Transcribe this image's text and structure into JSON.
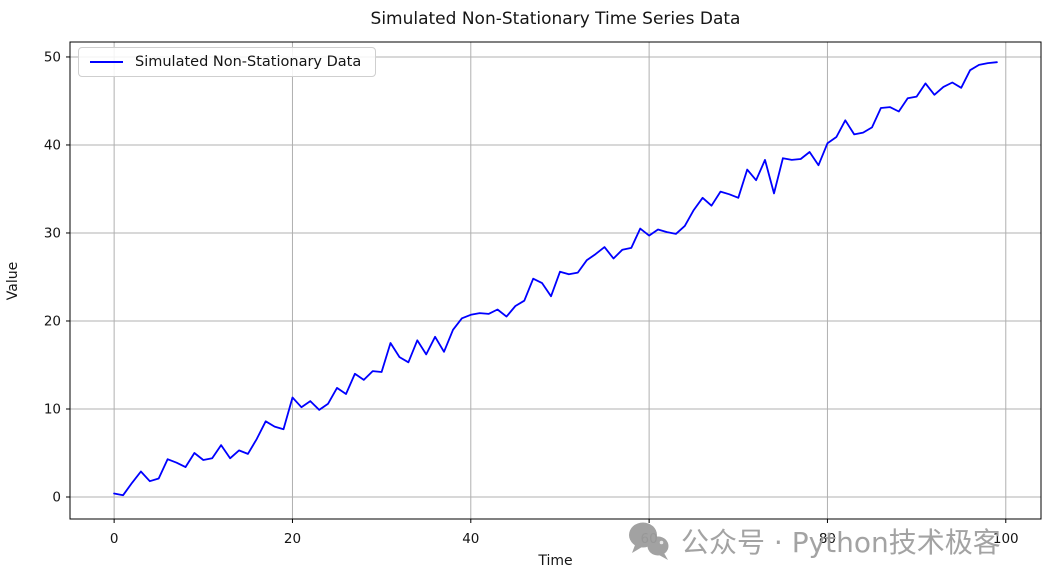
{
  "chart_data": {
    "type": "line",
    "title": "Simulated Non-Stationary Time Series Data",
    "xlabel": "Time",
    "ylabel": "Value",
    "xlim": [
      -4.95,
      103.95
    ],
    "ylim": [
      -2.5,
      51.7
    ],
    "xticks": [
      0,
      20,
      40,
      60,
      80,
      100
    ],
    "yticks": [
      0,
      10,
      20,
      30,
      40,
      50
    ],
    "grid": true,
    "legend": {
      "position": "upper left",
      "entries": [
        {
          "label": "Simulated Non-Stationary Data",
          "color": "#0000ff"
        }
      ]
    },
    "series": [
      {
        "name": "Simulated Non-Stationary Data",
        "color": "#0000ff",
        "x_start": 0,
        "x_step": 1,
        "values": [
          0.4,
          0.2,
          1.6,
          2.9,
          1.8,
          2.1,
          4.3,
          3.9,
          3.4,
          5.0,
          4.2,
          4.4,
          5.9,
          4.4,
          5.3,
          4.9,
          6.6,
          8.6,
          8.0,
          7.7,
          11.3,
          10.2,
          10.9,
          9.9,
          10.6,
          12.4,
          11.7,
          14.0,
          13.3,
          14.3,
          14.2,
          17.5,
          15.9,
          15.3,
          17.8,
          16.2,
          18.2,
          16.5,
          19.0,
          20.3,
          20.7,
          20.9,
          20.8,
          21.3,
          20.5,
          21.7,
          22.3,
          24.8,
          24.3,
          22.8,
          25.6,
          25.3,
          25.5,
          26.9,
          27.6,
          28.4,
          27.1,
          28.1,
          28.3,
          30.5,
          29.7,
          30.4,
          30.1,
          29.9,
          30.8,
          32.6,
          34.0,
          33.1,
          34.7,
          34.4,
          34.0,
          37.2,
          36.0,
          38.3,
          34.5,
          38.5,
          38.3,
          38.4,
          39.2,
          37.7,
          40.2,
          40.9,
          42.8,
          41.2,
          41.4,
          42.0,
          44.2,
          44.3,
          43.8,
          45.3,
          45.5,
          47.0,
          45.7,
          46.6,
          47.1,
          46.5,
          48.5,
          49.1,
          49.3,
          49.4
        ]
      }
    ]
  },
  "watermark": {
    "text": "公众号 · Python技术极客",
    "icon": "wechat-icon"
  },
  "colors": {
    "line": "#0000ff",
    "grid": "#b0b0b0",
    "frame": "#000000",
    "tick_text": "#151515",
    "background": "#ffffff",
    "legend_border": "#cfcfcf",
    "watermark": "#9e9e9e"
  }
}
